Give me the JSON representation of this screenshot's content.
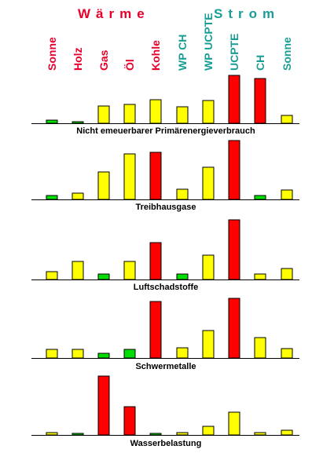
{
  "groups": [
    {
      "label": "Wärme",
      "color": "#e8002a"
    },
    {
      "label": "Strom",
      "color": "#1a9d95"
    }
  ],
  "categories": [
    {
      "label": "Sonne",
      "group": "Wärme"
    },
    {
      "label": "Holz",
      "group": "Wärme"
    },
    {
      "label": "Gas",
      "group": "Wärme"
    },
    {
      "label": "Öl",
      "group": "Wärme"
    },
    {
      "label": "Kohle",
      "group": "Wärme"
    },
    {
      "label": "WP CH",
      "group": "Strom"
    },
    {
      "label": "WP UCPTE",
      "group": "Strom"
    },
    {
      "label": "UCPTE",
      "group": "Strom"
    },
    {
      "label": "CH",
      "group": "Strom"
    },
    {
      "label": "Sonne",
      "group": "Strom"
    }
  ],
  "colors": {
    "green": "#00dd00",
    "yellow": "#ffff00",
    "red": "#ff0000",
    "axis": "#000000"
  },
  "chart_data": [
    {
      "type": "bar",
      "title": "Nicht emeuerbarer Primärenergieverbrauch",
      "categories": [
        "Sonne",
        "Holz",
        "Gas",
        "Öl",
        "Kohle",
        "WP CH",
        "WP UCPTE",
        "UCPTE",
        "CH",
        "Sonne"
      ],
      "values": [
        4,
        2,
        22,
        24,
        30,
        21,
        29,
        61,
        57,
        10
      ],
      "bar_colors": [
        "green",
        "green",
        "yellow",
        "yellow",
        "yellow",
        "yellow",
        "yellow",
        "red",
        "red",
        "yellow"
      ],
      "ylim": [
        0,
        61
      ],
      "grid": false,
      "axis_ticks": false
    },
    {
      "type": "bar",
      "title": "Treibhausgase",
      "categories": [
        "Sonne",
        "Holz",
        "Gas",
        "Öl",
        "Kohle",
        "WP CH",
        "WP UCPTE",
        "UCPTE",
        "CH",
        "Sonne"
      ],
      "values": [
        5,
        8,
        35,
        58,
        60,
        13,
        41,
        75,
        5,
        12
      ],
      "bar_colors": [
        "green",
        "yellow",
        "yellow",
        "yellow",
        "red",
        "yellow",
        "yellow",
        "red",
        "green",
        "yellow"
      ],
      "ylim": [
        0,
        75
      ],
      "grid": false,
      "axis_ticks": false
    },
    {
      "type": "bar",
      "title": "Luftschadstoffe",
      "categories": [
        "Sonne",
        "Holz",
        "Gas",
        "Öl",
        "Kohle",
        "WP CH",
        "WP UCPTE",
        "UCPTE",
        "CH",
        "Sonne"
      ],
      "values": [
        10,
        23,
        7,
        23,
        47,
        7,
        31,
        76,
        7,
        14
      ],
      "bar_colors": [
        "yellow",
        "yellow",
        "green",
        "yellow",
        "red",
        "green",
        "yellow",
        "red",
        "yellow",
        "yellow"
      ],
      "ylim": [
        0,
        76
      ],
      "grid": false,
      "axis_ticks": false
    },
    {
      "type": "bar",
      "title": "Schwermetalle",
      "categories": [
        "Sonne",
        "Holz",
        "Gas",
        "Öl",
        "Kohle",
        "WP CH",
        "WP UCPTE",
        "UCPTE",
        "CH",
        "Sonne"
      ],
      "values": [
        11,
        11,
        6,
        11,
        72,
        13,
        35,
        76,
        26,
        12
      ],
      "bar_colors": [
        "yellow",
        "yellow",
        "green",
        "green",
        "red",
        "yellow",
        "yellow",
        "red",
        "yellow",
        "yellow"
      ],
      "ylim": [
        0,
        76
      ],
      "grid": false,
      "axis_ticks": false
    },
    {
      "type": "bar",
      "title": "Wasserbelastung",
      "categories": [
        "Sonne",
        "Holz",
        "Gas",
        "Öl",
        "Kohle",
        "WP CH",
        "WP UCPTE",
        "UCPTE",
        "CH",
        "Sonne"
      ],
      "values": [
        3,
        2,
        75,
        36,
        2,
        3,
        11,
        29,
        3,
        6
      ],
      "bar_colors": [
        "yellow",
        "green",
        "red",
        "red",
        "green",
        "yellow",
        "yellow",
        "yellow",
        "yellow",
        "yellow"
      ],
      "ylim": [
        0,
        75
      ],
      "grid": false,
      "axis_ticks": false
    }
  ]
}
